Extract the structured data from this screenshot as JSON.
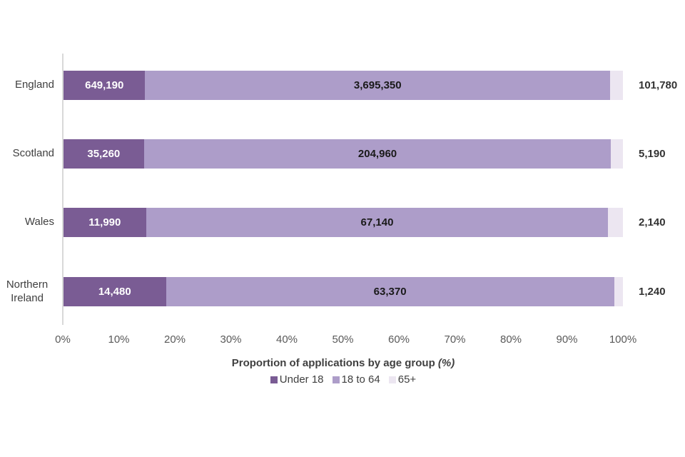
{
  "chart_data": {
    "type": "bar",
    "orientation": "horizontal",
    "stacked": true,
    "stacked_mode": "percent",
    "title": "",
    "xlabel": "Proportion of applications by age group",
    "xlabel_suffix": "(%)",
    "ylabel": "",
    "xlim": [
      0,
      100
    ],
    "grid": false,
    "legend_position": "bottom",
    "categories": [
      "England",
      "Scotland",
      "Wales",
      "Northern Ireland"
    ],
    "x_ticks": [
      "0%",
      "10%",
      "20%",
      "30%",
      "40%",
      "50%",
      "60%",
      "70%",
      "80%",
      "90%",
      "100%"
    ],
    "series": [
      {
        "name": "Under 18",
        "color": "#7A5C94",
        "values": [
          649190,
          35260,
          11990,
          14480
        ],
        "labels": [
          "649,190",
          "35,260",
          "11,990",
          "14,480"
        ],
        "label_color": "#ffffff",
        "label_placement": "inside"
      },
      {
        "name": "18 to 64",
        "color": "#AD9DC9",
        "values": [
          3695350,
          204960,
          67140,
          63370
        ],
        "labels": [
          "3,695,350",
          "204,960",
          "67,140",
          "63,370"
        ],
        "label_color": "#1a1a1a",
        "label_placement": "inside"
      },
      {
        "name": "65+",
        "color": "#ECE6F1",
        "values": [
          101780,
          5190,
          2140,
          1240
        ],
        "labels": [
          "101,780",
          "5,190",
          "2,140",
          "1,240"
        ],
        "label_color": "#333333",
        "label_placement": "outside-right"
      }
    ],
    "colors": {
      "axis_line": "#d9d9d9",
      "tick_text": "#595959",
      "category_text": "#404040",
      "axis_title_text": "#404040",
      "legend_text": "#404040",
      "background": "#ffffff"
    }
  }
}
